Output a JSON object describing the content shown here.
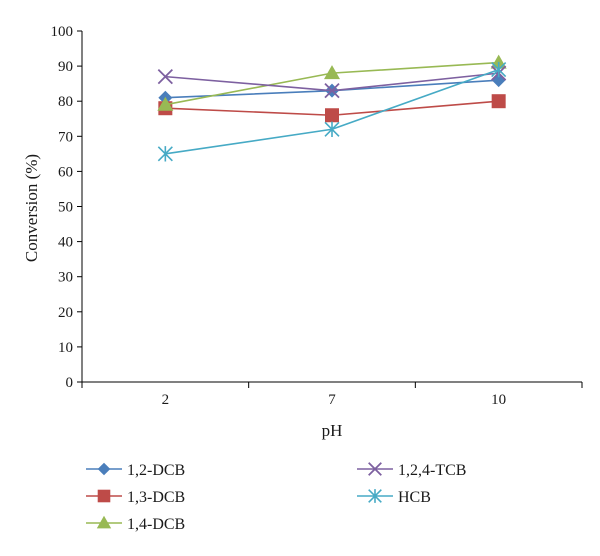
{
  "chart_data": {
    "type": "line",
    "title": "",
    "xlabel": "pH",
    "ylabel": "Conversion (%)",
    "categories": [
      "2",
      "7",
      "10"
    ],
    "ylim": [
      0,
      100
    ],
    "yticks": [
      0,
      10,
      20,
      30,
      40,
      50,
      60,
      70,
      80,
      90,
      100
    ],
    "grid": false,
    "legend_position": "bottom",
    "series": [
      {
        "name": "1,2-DCB",
        "values": [
          81,
          83,
          86
        ],
        "color": "#4a7ebb",
        "marker": "diamond"
      },
      {
        "name": "1,3-DCB",
        "values": [
          78,
          76,
          80
        ],
        "color": "#be4b48",
        "marker": "square"
      },
      {
        "name": "1,4-DCB",
        "values": [
          79,
          88,
          91
        ],
        "color": "#98b954",
        "marker": "triangle"
      },
      {
        "name": "1,2,4-TCB",
        "values": [
          87,
          83,
          88
        ],
        "color": "#7d60a0",
        "marker": "x"
      },
      {
        "name": "HCB",
        "values": [
          65,
          72,
          89
        ],
        "color": "#46aac5",
        "marker": "asterisk"
      }
    ]
  }
}
